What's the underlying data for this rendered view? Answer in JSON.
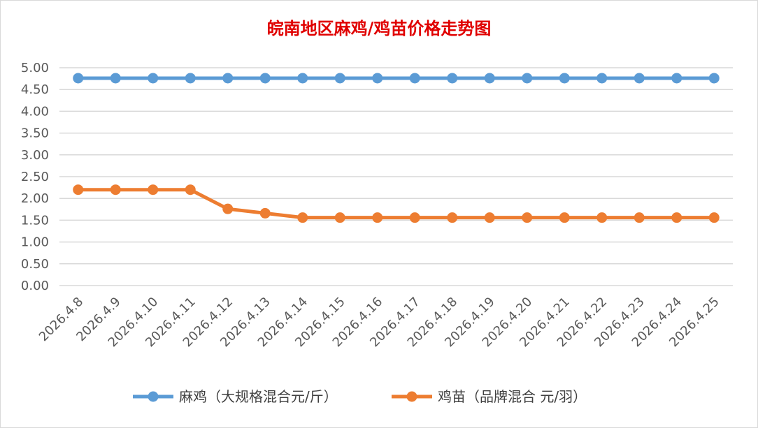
{
  "chart_data": {
    "type": "line",
    "title": "皖南地区麻鸡/鸡苗价格走势图",
    "categories": [
      "2026.4.8",
      "2026.4.9",
      "2026.4.10",
      "2026.4.11",
      "2026.4.12",
      "2026.4.13",
      "2026.4.14",
      "2026.4.15",
      "2026.4.16",
      "2026.4.17",
      "2026.4.18",
      "2026.4.19",
      "2026.4.20",
      "2026.4.21",
      "2026.4.22",
      "2026.4.23",
      "2026.4.24",
      "2026.4.25"
    ],
    "yticks": [
      "0.00",
      "0.50",
      "1.00",
      "1.50",
      "2.00",
      "2.50",
      "3.00",
      "3.50",
      "4.00",
      "4.50",
      "5.00"
    ],
    "ylim": [
      0,
      5
    ],
    "grid": true,
    "legend": "bottom",
    "series": [
      {
        "name": "麻鸡（大规格混合元/斤）",
        "color": "#5b9bd5",
        "values": [
          4.76,
          4.76,
          4.76,
          4.76,
          4.76,
          4.76,
          4.76,
          4.76,
          4.76,
          4.76,
          4.76,
          4.76,
          4.76,
          4.76,
          4.76,
          4.76,
          4.76,
          4.76
        ]
      },
      {
        "name": "鸡苗（品牌混合 元/羽）",
        "color": "#ed7d31",
        "values": [
          2.2,
          2.2,
          2.2,
          2.2,
          1.76,
          1.66,
          1.56,
          1.56,
          1.56,
          1.56,
          1.56,
          1.56,
          1.56,
          1.56,
          1.56,
          1.56,
          1.56,
          1.56
        ]
      }
    ]
  }
}
